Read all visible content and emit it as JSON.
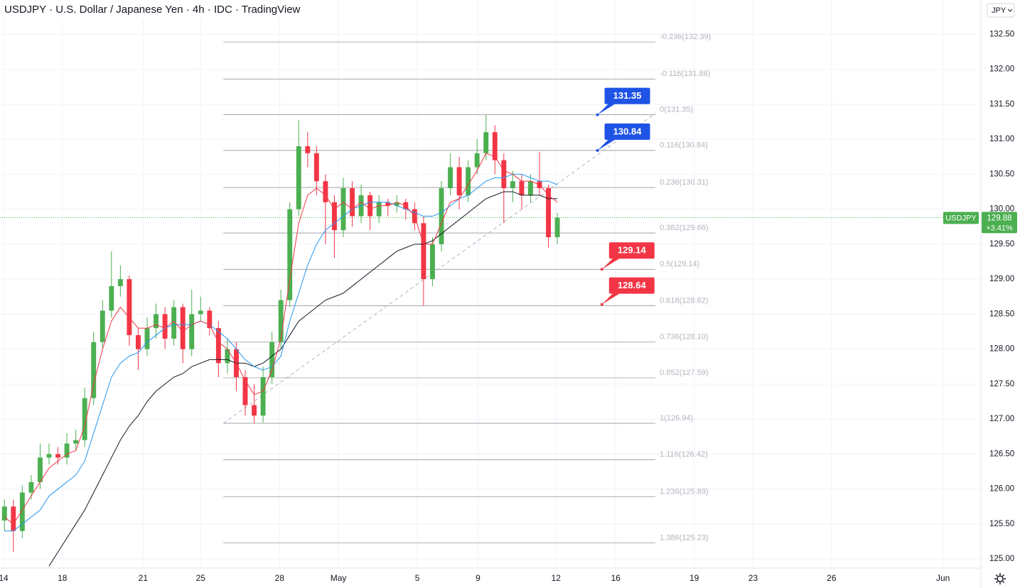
{
  "header": {
    "symbol": "USDJPY",
    "name": "U.S. Dollar / Japanese Yen",
    "interval": "4h",
    "source": "IDC",
    "brand": "TradingView",
    "currency": "JPY"
  },
  "chart_data": {
    "type": "candlestick",
    "up_color": "#4caf50",
    "down_color": "#f23645",
    "xlim": [
      0,
      220
    ],
    "ylim": [
      124.87,
      132.99
    ],
    "xticks": [
      {
        "value": 0.8,
        "label": "14"
      },
      {
        "value": 14,
        "label": "18"
      },
      {
        "value": 32.1,
        "label": "21"
      },
      {
        "value": 45,
        "label": "25"
      },
      {
        "value": 62.7,
        "label": "28"
      },
      {
        "value": 75.9,
        "label": "May"
      },
      {
        "value": 93.6,
        "label": "5"
      },
      {
        "value": 107.2,
        "label": "9"
      },
      {
        "value": 124.7,
        "label": "12"
      },
      {
        "value": 138.1,
        "label": "16"
      },
      {
        "value": 155.7,
        "label": "19"
      },
      {
        "value": 168.9,
        "label": "23"
      },
      {
        "value": 186.5,
        "label": "26"
      },
      {
        "value": 211.5,
        "label": "Jun"
      }
    ],
    "yticks": [
      {
        "value": 125,
        "label": "125.00"
      },
      {
        "value": 125.5,
        "label": "125.50"
      },
      {
        "value": 126,
        "label": "126.00"
      },
      {
        "value": 126.5,
        "label": "126.50"
      },
      {
        "value": 127,
        "label": "127.00"
      },
      {
        "value": 127.5,
        "label": "127.50"
      },
      {
        "value": 128,
        "label": "128.00"
      },
      {
        "value": 128.5,
        "label": "128.50"
      },
      {
        "value": 129,
        "label": "129.00"
      },
      {
        "value": 129.5,
        "label": "129.50"
      },
      {
        "value": 130,
        "label": "130.00"
      },
      {
        "value": 130.5,
        "label": "130.50"
      },
      {
        "value": 131,
        "label": "131.00"
      },
      {
        "value": 131.5,
        "label": "131.50"
      },
      {
        "value": 132,
        "label": "132.00"
      },
      {
        "value": 132.5,
        "label": "132.50"
      }
    ],
    "grid": true,
    "x": [
      1,
      3,
      5,
      7,
      9,
      11,
      13,
      15,
      17,
      19,
      21,
      23,
      25,
      27,
      29,
      31,
      33,
      35,
      37,
      39,
      41,
      43,
      45,
      47,
      49,
      51,
      53,
      55,
      57,
      59,
      61,
      63,
      65,
      67,
      69,
      71,
      73,
      75,
      77,
      79,
      81,
      83,
      85,
      87,
      89,
      91,
      93,
      95,
      97,
      99,
      101,
      103,
      105,
      107,
      109,
      111,
      113,
      115,
      117,
      119,
      121,
      123,
      125
    ],
    "open": [
      125.55,
      125.75,
      125.4,
      125.95,
      126.1,
      126.45,
      126.5,
      126.45,
      126.65,
      126.7,
      127.3,
      128.1,
      128.55,
      128.9,
      129,
      128.2,
      128,
      128.3,
      128.5,
      128.15,
      128.6,
      128,
      128.5,
      128.55,
      128.3,
      127.8,
      128,
      127.6,
      127.2,
      127.05,
      127.6,
      128.1,
      128.7,
      130,
      130.9,
      130.8,
      130.4,
      130.1,
      129.7,
      130.3,
      129.9,
      130.2,
      129.9,
      130.1,
      130.05,
      130.1,
      130,
      129.8,
      129,
      129.5,
      130.3,
      130.6,
      130.2,
      130.6,
      130.8,
      131.1,
      130.7,
      130.3,
      130.4,
      130.2,
      130.4,
      130.3,
      129.6
    ],
    "high": [
      125.85,
      125.85,
      126.05,
      126.2,
      126.65,
      126.65,
      126.6,
      126.8,
      126.85,
      127.45,
      128.25,
      128.7,
      129.4,
      129.2,
      129.05,
      128.3,
      128.45,
      128.65,
      128.6,
      128.7,
      128.65,
      128.85,
      128.75,
      128.6,
      128.4,
      128.15,
      128.1,
      127.7,
      127.5,
      127.75,
      128.25,
      128.85,
      130.1,
      131.27,
      131.1,
      130.9,
      130.5,
      130.2,
      130.45,
      130.4,
      130.35,
      130.25,
      130.2,
      130.15,
      130.2,
      130.15,
      130.1,
      129.9,
      129.6,
      130.4,
      130.8,
      130.75,
      130.7,
      131,
      131.35,
      131.2,
      130.8,
      130.55,
      130.5,
      130.5,
      130.82,
      130.35,
      129.95
    ],
    "low": [
      125.4,
      125.1,
      125.3,
      125.85,
      126,
      126.35,
      126.35,
      126.35,
      126.55,
      126.6,
      127.2,
      128,
      128.45,
      128.75,
      128.05,
      127.7,
      127.9,
      128.15,
      128,
      128.05,
      127.8,
      127.9,
      128.4,
      128.2,
      127.6,
      127.65,
      127.4,
      127.05,
      126.94,
      126.95,
      127.5,
      128,
      128.6,
      129.9,
      130.6,
      130.2,
      129.5,
      129.3,
      129.6,
      129.75,
      129.8,
      129.7,
      129.8,
      129.9,
      129.95,
      129.85,
      129.7,
      128.62,
      128.9,
      129.4,
      130.2,
      130,
      130.1,
      130.5,
      130.7,
      130.5,
      129.8,
      130.1,
      130,
      130.1,
      130.2,
      129.45,
      129.5
    ],
    "close": [
      125.75,
      125.4,
      125.95,
      126.1,
      126.45,
      126.5,
      126.45,
      126.65,
      126.7,
      127.3,
      128.1,
      128.55,
      128.9,
      129,
      128.2,
      128,
      128.3,
      128.5,
      128.15,
      128.6,
      128,
      128.5,
      128.55,
      128.3,
      127.8,
      128,
      127.6,
      127.2,
      127.05,
      127.6,
      128.1,
      128.7,
      130,
      130.9,
      130.8,
      130.4,
      130.1,
      129.7,
      130.3,
      129.9,
      130.2,
      129.9,
      130.1,
      130.05,
      130.1,
      130,
      129.8,
      129,
      129.5,
      130.3,
      130.6,
      130.2,
      130.6,
      130.8,
      131.1,
      130.7,
      130.3,
      130.4,
      130.2,
      130.4,
      130.3,
      129.6,
      129.88
    ],
    "lines": [
      {
        "color": "#131722",
        "values": [
          null,
          null,
          null,
          null,
          null,
          124.9,
          125.1,
          125.3,
          125.5,
          125.7,
          125.95,
          126.2,
          126.45,
          126.7,
          126.9,
          127.05,
          127.25,
          127.4,
          127.5,
          127.6,
          127.65,
          127.75,
          127.8,
          127.85,
          127.85,
          127.85,
          127.8,
          127.8,
          127.75,
          127.8,
          127.9,
          128,
          128.2,
          128.4,
          128.5,
          128.6,
          128.7,
          128.75,
          128.8,
          128.9,
          129,
          129.1,
          129.2,
          129.3,
          129.4,
          129.45,
          129.5,
          129.5,
          129.55,
          129.65,
          129.75,
          129.85,
          129.95,
          130.05,
          130.15,
          130.2,
          130.25,
          130.25,
          130.2,
          130.2,
          130.2,
          130.15,
          130.15
        ]
      },
      {
        "color": "#2196f3",
        "values": [
          125.4,
          125.4,
          125.5,
          125.6,
          125.7,
          125.9,
          126,
          126.1,
          126.2,
          126.4,
          126.8,
          127.2,
          127.6,
          127.8,
          127.9,
          127.95,
          128.1,
          128.2,
          128.3,
          128.35,
          128.35,
          128.35,
          128.4,
          128.35,
          128.25,
          128.15,
          128,
          127.85,
          127.75,
          127.7,
          127.75,
          127.9,
          128.4,
          128.8,
          129.2,
          129.5,
          129.7,
          129.8,
          129.9,
          130,
          130.05,
          130.1,
          130.1,
          130.1,
          130.05,
          130,
          129.95,
          129.9,
          129.9,
          129.95,
          130.05,
          130.15,
          130.2,
          130.3,
          130.4,
          130.45,
          130.45,
          130.5,
          130.5,
          130.45,
          130.4,
          130.4,
          130.35
        ]
      },
      {
        "color": "#f23645",
        "values": [
          125.6,
          125.5,
          125.7,
          125.9,
          126.1,
          126.3,
          126.4,
          126.5,
          126.55,
          126.9,
          127.5,
          128,
          128.4,
          128.6,
          128.45,
          128.3,
          128.3,
          128.35,
          128.3,
          128.4,
          128.25,
          128.35,
          128.4,
          128.35,
          128.1,
          128,
          127.8,
          127.55,
          127.35,
          127.4,
          127.7,
          128.15,
          129,
          129.8,
          130.2,
          130.3,
          130.2,
          130,
          130.1,
          130,
          130.1,
          130,
          130.05,
          130.05,
          130.1,
          130.05,
          129.9,
          129.5,
          129.5,
          129.8,
          130.1,
          130.15,
          130.35,
          130.55,
          130.8,
          130.75,
          130.55,
          130.5,
          130.4,
          130.4,
          130.35,
          130.2,
          130.1
        ]
      }
    ],
    "fib_x": [
      50.1,
      147
    ],
    "fib_levels": [
      {
        "value": 132.39,
        "label": "-0.236(132.39)"
      },
      {
        "value": 131.86,
        "label": "-0.116(131.86)"
      },
      {
        "value": 131.35,
        "label": "0(131.35)"
      },
      {
        "value": 130.84,
        "label": "0.116(130.84)"
      },
      {
        "value": 130.31,
        "label": "0.236(130.31)"
      },
      {
        "value": 129.66,
        "label": "0.382(129.66)"
      },
      {
        "value": 129.14,
        "label": "0.5(129.14)"
      },
      {
        "value": 128.62,
        "label": "0.618(128.62)"
      },
      {
        "value": 128.1,
        "label": "0.736(128.10)"
      },
      {
        "value": 127.59,
        "label": "0.852(127.59)"
      },
      {
        "value": 126.94,
        "label": "1(126.94)"
      },
      {
        "value": 126.42,
        "label": "1.116(126.42)"
      },
      {
        "value": 125.89,
        "label": "1.236(125.89)"
      },
      {
        "value": 125.23,
        "label": "1.386(125.23)"
      }
    ],
    "trendline": {
      "x": [
        50.1,
        147
      ],
      "values": [
        126.94,
        131.37
      ]
    },
    "callouts": [
      {
        "x": 134,
        "value": 131.35,
        "color": "#1e53e5"
      },
      {
        "x": 134,
        "value": 130.84,
        "color": "#1e53e5"
      },
      {
        "x": 135,
        "value": 129.14,
        "color": "#f23645"
      },
      {
        "x": 135,
        "value": 128.64,
        "color": "#f23645"
      }
    ],
    "last": {
      "symbol": "USDJPY",
      "price": 129.88,
      "change": "+3.41%",
      "color": "#4caf50"
    }
  }
}
